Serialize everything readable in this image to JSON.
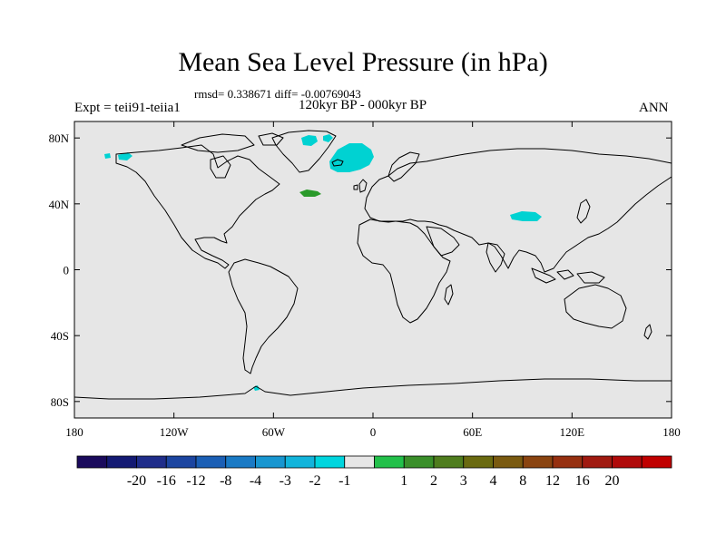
{
  "title": "Mean Sea Level Pressure (in hPa)",
  "stats_line": "rmsd= 0.338671 diff= -0.00769043",
  "period_line": "120kyr BP - 000kyr BP",
  "expt_line": "Expt = teii91-teiia1",
  "season": "ANN",
  "map": {
    "projection": "cylindrical-equidistant",
    "lon_range": [
      -180,
      180
    ],
    "lat_range": [
      -90,
      90
    ],
    "background_color": "#e6e6e6",
    "coastline_color": "#000000",
    "lat_ticks": [
      {
        "value": 80,
        "label": "80N"
      },
      {
        "value": 40,
        "label": "40N"
      },
      {
        "value": 0,
        "label": "0"
      },
      {
        "value": -40,
        "label": "40S"
      },
      {
        "value": -80,
        "label": "80S"
      }
    ],
    "lon_ticks": [
      {
        "value": -180,
        "label": "180"
      },
      {
        "value": -120,
        "label": "120W"
      },
      {
        "value": -60,
        "label": "60W"
      },
      {
        "value": 0,
        "label": "0"
      },
      {
        "value": 60,
        "label": "60E"
      },
      {
        "value": 120,
        "label": "120E"
      },
      {
        "value": 180,
        "label": "180"
      }
    ],
    "anomaly_regions": [
      {
        "name": "greenland-iceland",
        "bin": "-2 to -1",
        "color": "#00d2d2"
      },
      {
        "name": "alaska",
        "bin": "-2 to -1",
        "color": "#00d2d2"
      },
      {
        "name": "tibet",
        "bin": "-2 to -1",
        "color": "#00d2d2"
      },
      {
        "name": "north-atlantic",
        "bin": "2 to 3",
        "color": "#2a9a2a"
      },
      {
        "name": "antarctic-peninsula",
        "bin": "-2 to -1",
        "color": "#00d2d2"
      }
    ]
  },
  "colorbar": {
    "colors": [
      "#1a0a5c",
      "#141a73",
      "#1f2d8a",
      "#1c45a0",
      "#1b5fb5",
      "#1a7ac5",
      "#1896d0",
      "#12b4db",
      "#00d5de",
      "#e6e6e6",
      "#22c04a",
      "#3a8f2a",
      "#4f7d1e",
      "#6a6a10",
      "#7a5a10",
      "#8a4410",
      "#963010",
      "#a01a10",
      "#b00a0a",
      "#c00000"
    ],
    "labels": [
      "-20",
      "-16",
      "-12",
      "-8",
      "-4",
      "-3",
      "-2",
      "-1",
      "1",
      "2",
      "3",
      "4",
      "8",
      "12",
      "16",
      "20"
    ]
  }
}
